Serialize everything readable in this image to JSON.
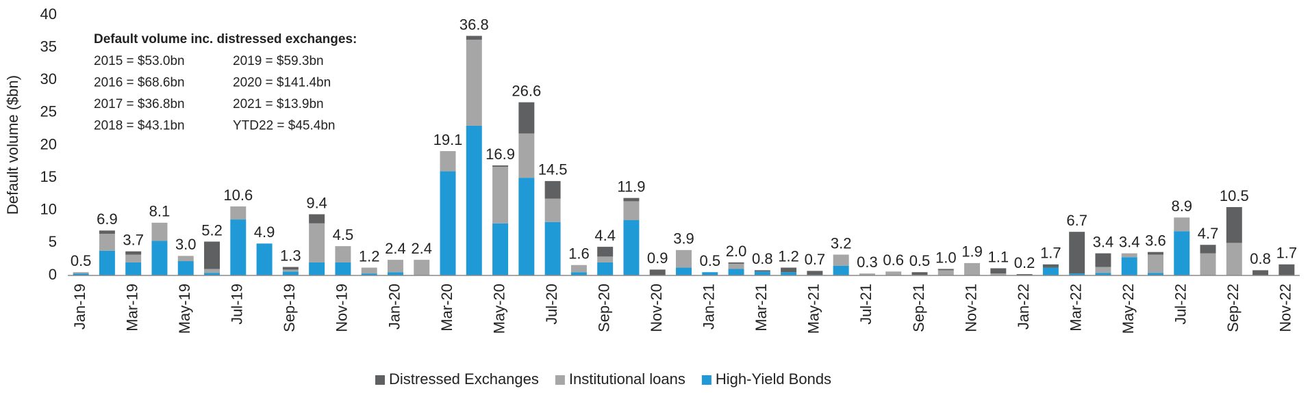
{
  "chart_data": {
    "type": "stacked-bar",
    "y_label": "Default volume ($bn)",
    "categories": [
      "Jan-19",
      null,
      "Mar-19",
      null,
      "May-19",
      null,
      "Jul-19",
      null,
      "Sep-19",
      null,
      "Nov-19",
      null,
      "Jan-20",
      null,
      "Mar-20",
      null,
      "May-20",
      null,
      "Jul-20",
      null,
      "Sep-20",
      null,
      "Nov-20",
      null,
      "Jan-21",
      null,
      "Mar-21",
      null,
      "May-21",
      null,
      "Jul-21",
      null,
      "Sep-21",
      null,
      "Nov-21",
      null,
      "Jan-22",
      null,
      "Mar-22",
      null,
      "May-22",
      null,
      "Jul-22",
      null,
      "Sep-22",
      null,
      "Nov-22"
    ],
    "series": [
      {
        "name": "High-Yield Bonds",
        "color": "#1f9ad6",
        "values": [
          0.3,
          3.8,
          2.0,
          5.3,
          2.2,
          0.4,
          8.6,
          4.9,
          0.6,
          2.0,
          2.0,
          0.3,
          0.5,
          0,
          16.0,
          23.0,
          8.0,
          15.0,
          8.2,
          0.5,
          2.0,
          8.5,
          0,
          1.2,
          0.5,
          1.0,
          0.6,
          0.5,
          0.1,
          1.5,
          0,
          0,
          0,
          0,
          0,
          0,
          0,
          1.2,
          0.3,
          0.4,
          2.8,
          0.4,
          6.8,
          0,
          0,
          0,
          0
        ]
      },
      {
        "name": "Institutional loans",
        "color": "#a6a6a6",
        "values": [
          0.2,
          2.6,
          1.2,
          2.8,
          0.8,
          0.6,
          2.0,
          0,
          0.3,
          6.0,
          2.5,
          0.9,
          1.9,
          2.4,
          3.1,
          13.2,
          8.7,
          6.8,
          3.6,
          1.1,
          0.9,
          2.9,
          0,
          2.7,
          0,
          0.8,
          0,
          0,
          0,
          1.7,
          0.3,
          0.6,
          0.1,
          0.8,
          1.9,
          0.3,
          0,
          0,
          0,
          0.9,
          0.6,
          2.8,
          2.1,
          3.4,
          5.0,
          0,
          0
        ]
      },
      {
        "name": "Distressed Exchanges",
        "color": "#5f6062",
        "values": [
          0,
          0.5,
          0.5,
          0,
          0,
          4.2,
          0,
          0,
          0.4,
          1.4,
          0,
          0,
          0,
          0,
          0,
          0.6,
          0.2,
          4.8,
          2.7,
          0,
          1.5,
          0.5,
          0.9,
          0,
          0,
          0.2,
          0.2,
          0.7,
          0.6,
          0,
          0,
          0,
          0.4,
          0.2,
          0,
          0.8,
          0.2,
          0.5,
          6.4,
          2.1,
          0,
          0.4,
          0,
          1.3,
          5.5,
          0.8,
          1.7
        ]
      }
    ],
    "totals": [
      0.5,
      6.9,
      3.7,
      8.1,
      3.0,
      5.2,
      10.6,
      4.9,
      1.3,
      9.4,
      4.5,
      1.2,
      2.4,
      2.4,
      19.1,
      36.8,
      16.9,
      26.6,
      14.5,
      1.6,
      4.4,
      11.9,
      0.9,
      3.9,
      0.5,
      2.0,
      0.8,
      1.2,
      0.7,
      3.2,
      0.3,
      0.6,
      0.5,
      1.0,
      1.9,
      1.1,
      0.2,
      1.7,
      6.7,
      3.4,
      3.4,
      3.6,
      8.9,
      4.7,
      10.5,
      0.8,
      1.7
    ],
    "total_labels": [
      "0.5",
      "6.9",
      "3.7",
      "8.1",
      "3.0",
      "5.2",
      "10.6",
      "4.9",
      "1.3",
      "9.4",
      "4.5",
      "1.2",
      "2.4",
      "2.4",
      "19.1",
      "36.8",
      "16.9",
      "26.6",
      "14.5",
      "1.6",
      "4.4",
      "11.9",
      "0.9",
      "3.9",
      "0.5",
      "2.0",
      "0.8",
      "1.2",
      "0.7",
      "3.2",
      "0.3",
      "0.6",
      "0.5",
      "1.0",
      "1.9",
      "1.1",
      "0.2",
      "1.7",
      "6.7",
      "3.4",
      "3.4",
      "3.6",
      "8.9",
      "4.7",
      "10.5",
      "0.8",
      "1.7"
    ],
    "ylim": [
      0,
      40
    ],
    "yticks": [
      0,
      5,
      10,
      15,
      20,
      25,
      30,
      35,
      40
    ],
    "grid": false,
    "legend": "bottom",
    "annotation": {
      "title": "Default volume inc. distressed exchanges:",
      "lines": [
        [
          "2015 = $53.0bn",
          "2019 = $59.3bn"
        ],
        [
          "2016 = $68.6bn",
          "2020 = $141.4bn"
        ],
        [
          "2017 = $36.8bn",
          "2021 = $13.9bn"
        ],
        [
          "2018 = $43.1bn",
          "YTD22 = $45.4bn"
        ]
      ]
    }
  }
}
